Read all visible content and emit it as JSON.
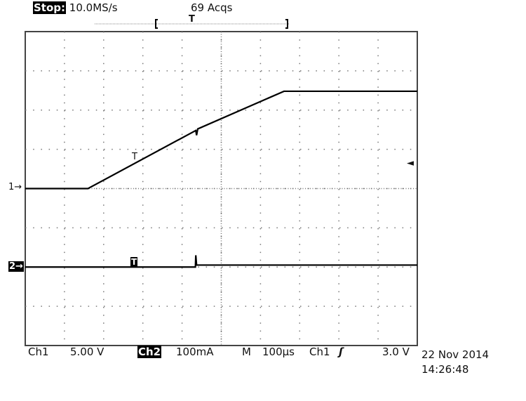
{
  "header": {
    "status": "Stop:",
    "sample_rate": "10.0MS/s",
    "acquisitions": "69 Acqs",
    "trigger_marker": "T"
  },
  "footer": {
    "ch1_label": "Ch1",
    "ch1_scale": "5.00 V",
    "ch2_label": "Ch2",
    "ch2_scale": "100mA",
    "timebase_label": "M",
    "timebase": "100µs",
    "trigger_source": "Ch1",
    "trigger_slope": "rising",
    "trigger_slope_glyph": "ʃ",
    "trigger_level": "3.0 V",
    "date": "22 Nov 2014",
    "time": "14:26:48"
  },
  "markers": {
    "ch1": "1→",
    "ch2": "2→",
    "trigger_level_arrow": "◄",
    "trace_trigger": "T"
  },
  "chart_data": {
    "type": "line",
    "title": "",
    "x_divisions": 10,
    "y_divisions": 8,
    "x_unit_per_div": "100µs",
    "grid": true,
    "xlim_us": [
      0,
      1000
    ],
    "series": [
      {
        "channel": "Ch1",
        "unit": "V",
        "per_div": 5,
        "offset_div": 0,
        "color": "#000000",
        "x": [
          0,
          160,
          435,
          437,
          440,
          660,
          1000
        ],
        "y": [
          0,
          0,
          7.4,
          6.8,
          7.6,
          12.4,
          12.4
        ]
      },
      {
        "channel": "Ch2",
        "unit": "mA",
        "per_div": 100,
        "offset_div": -2,
        "color": "#000000",
        "x": [
          0,
          434,
          435,
          437,
          1000
        ],
        "y": [
          0,
          0,
          30,
          5,
          5
        ]
      }
    ]
  }
}
